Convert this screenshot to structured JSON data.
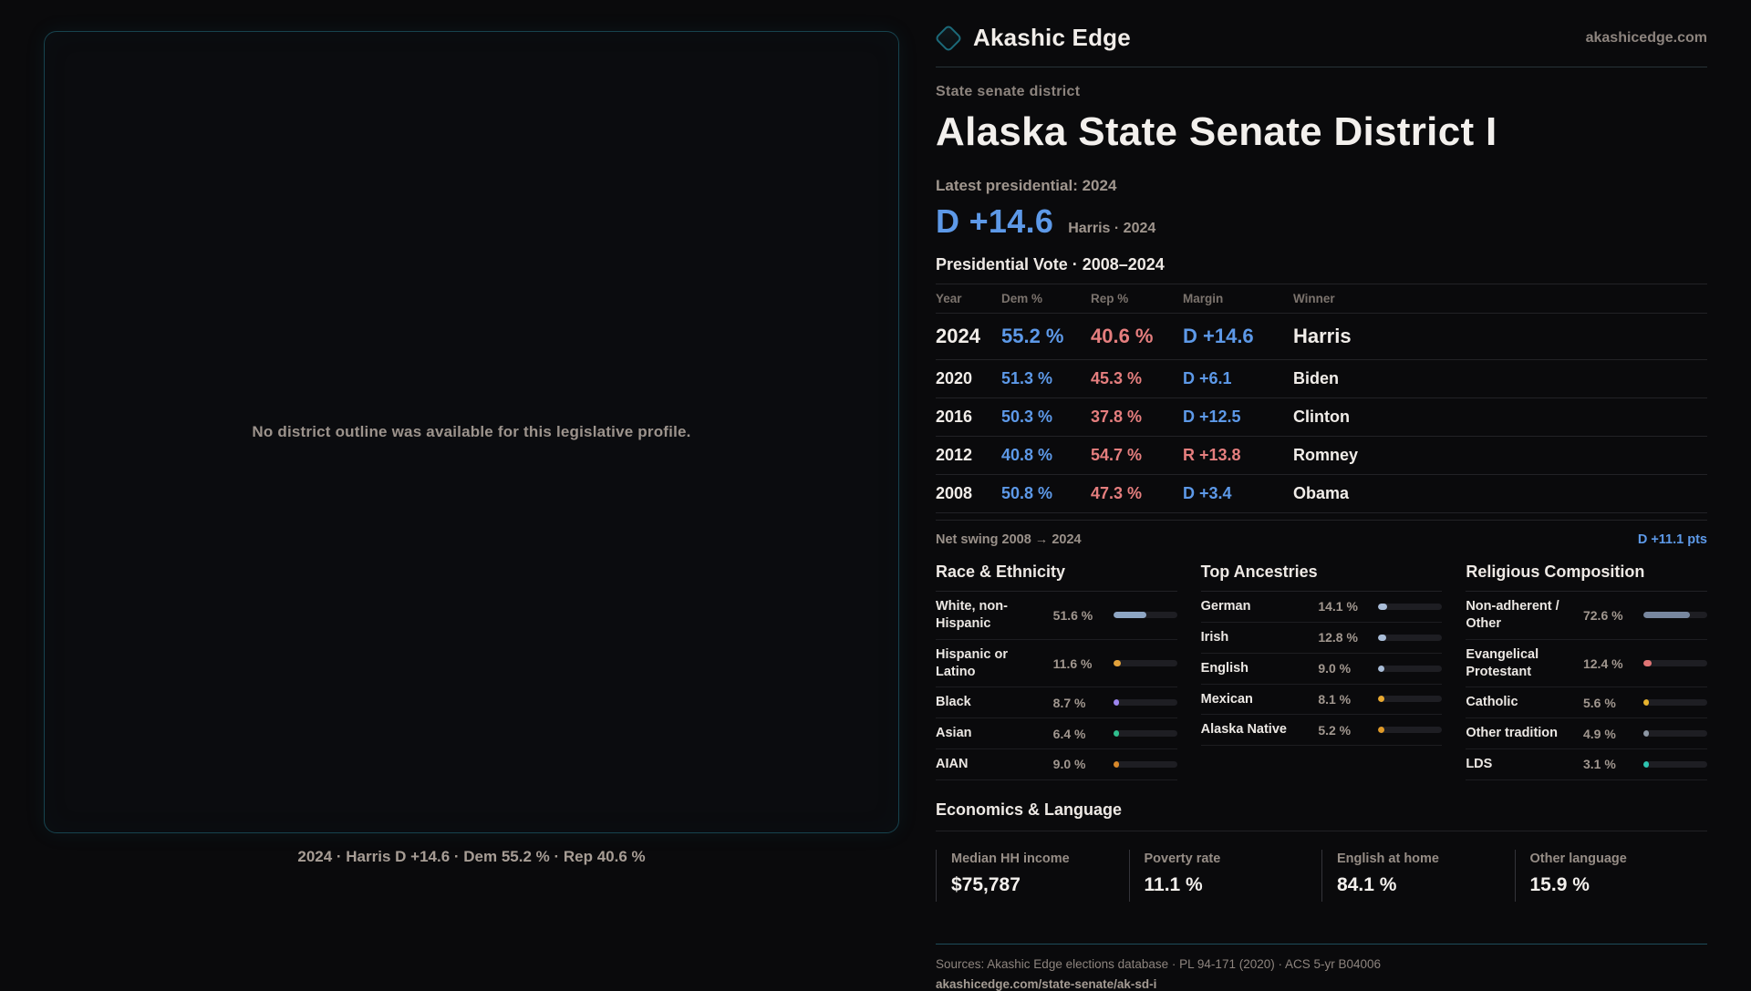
{
  "brand": {
    "name": "Akashic Edge",
    "domain": "akashicedge.com"
  },
  "map_panel": {
    "placeholder": "No district outline was available for this legislative profile.",
    "caption": "2024 · Harris D +14.6 · Dem 55.2 % · Rep 40.6 %"
  },
  "profile": {
    "eyebrow": "State senate district",
    "title": "Alaska State Senate District I",
    "latest_label": "Latest presidential: 2024",
    "headline_margin": "D +14.6",
    "headline_detail": "Harris · 2024"
  },
  "table": {
    "title": "Presidential Vote · 2008–2024",
    "columns": [
      "Year",
      "Dem %",
      "Rep %",
      "Margin",
      "Winner"
    ],
    "rows": [
      {
        "year": "2024",
        "dem": "55.2 %",
        "rep": "40.6 %",
        "margin": "D +14.6",
        "party": "D",
        "winner": "Harris",
        "featured": true
      },
      {
        "year": "2020",
        "dem": "51.3 %",
        "rep": "45.3 %",
        "margin": "D +6.1",
        "party": "D",
        "winner": "Biden"
      },
      {
        "year": "2016",
        "dem": "50.3 %",
        "rep": "37.8 %",
        "margin": "D +12.5",
        "party": "D",
        "winner": "Clinton"
      },
      {
        "year": "2012",
        "dem": "40.8 %",
        "rep": "54.7 %",
        "margin": "R +13.8",
        "party": "R",
        "winner": "Romney"
      },
      {
        "year": "2008",
        "dem": "50.8 %",
        "rep": "47.3 %",
        "margin": "D +3.4",
        "party": "D",
        "winner": "Obama"
      }
    ],
    "net_swing_label": "Net swing 2008 → 2024",
    "net_swing_value": "D +11.1 pts"
  },
  "demographics": {
    "sections": [
      {
        "title": "Race & Ethnicity",
        "rows": [
          {
            "label": "White, non-Hispanic",
            "value": "51.6 %",
            "pct": 51.6,
            "color": "#8ea6c4"
          },
          {
            "label": "Hispanic or Latino",
            "value": "11.6 %",
            "pct": 11.6,
            "color": "#e2a23b"
          },
          {
            "label": "Black",
            "value": "8.7 %",
            "pct": 8.7,
            "color": "#9d86ef"
          },
          {
            "label": "Asian",
            "value": "6.4 %",
            "pct": 6.4,
            "color": "#2fbf8e"
          },
          {
            "label": "AIAN",
            "value": "9.0 %",
            "pct": 9.0,
            "color": "#d8882a"
          }
        ]
      },
      {
        "title": "Top Ancestries",
        "rows": [
          {
            "label": "German",
            "value": "14.1 %",
            "pct": 14.1,
            "color": "#a9bdd8"
          },
          {
            "label": "Irish",
            "value": "12.8 %",
            "pct": 12.8,
            "color": "#a9bdd8"
          },
          {
            "label": "English",
            "value": "9.0 %",
            "pct": 9.0,
            "color": "#a9bdd8"
          },
          {
            "label": "Mexican",
            "value": "8.1 %",
            "pct": 8.1,
            "color": "#e9a930"
          },
          {
            "label": "Alaska Native",
            "value": "5.2 %",
            "pct": 5.2,
            "color": "#e09a28"
          }
        ]
      },
      {
        "title": "Religious Composition",
        "rows": [
          {
            "label": "Non-adherent / Other",
            "value": "72.6 %",
            "pct": 72.6,
            "color": "#78879f"
          },
          {
            "label": "Evangelical Protestant",
            "value": "12.4 %",
            "pct": 12.4,
            "color": "#e07575"
          },
          {
            "label": "Catholic",
            "value": "5.6 %",
            "pct": 5.6,
            "color": "#e7b32e"
          },
          {
            "label": "Other tradition",
            "value": "4.9 %",
            "pct": 4.9,
            "color": "#8d97a4"
          },
          {
            "label": "LDS",
            "value": "3.1 %",
            "pct": 3.1,
            "color": "#2ec4b0"
          }
        ]
      }
    ]
  },
  "economics": {
    "title": "Economics & Language",
    "stats": [
      {
        "label": "Median HH income",
        "value": "$75,787"
      },
      {
        "label": "Poverty rate",
        "value": "11.1 %"
      },
      {
        "label": "English at home",
        "value": "84.1 %"
      },
      {
        "label": "Other language",
        "value": "15.9 %"
      }
    ]
  },
  "footer": {
    "sources": "Sources: Akashic Edge elections database · PL 94-171 (2020) · ACS 5-yr B04006",
    "slug": "akashicedge.com/state-senate/ak-sd-i"
  },
  "colors": {
    "dem": "#5d99e8",
    "rep": "#e57e7e",
    "accent_teal": "#1c6a7a"
  }
}
